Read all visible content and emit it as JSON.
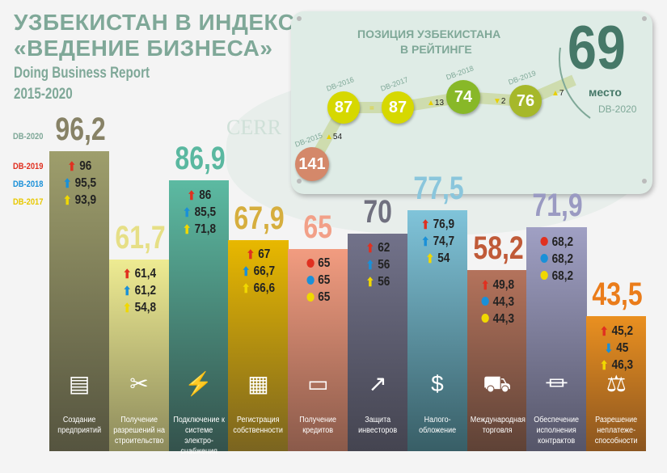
{
  "title": {
    "line1": "УЗБЕКИСТАН В ИНДЕКСЕ",
    "line2": "«ВЕДЕНИЕ БИЗНЕСА»",
    "sub1": "Doing Business Report",
    "sub2": "2015-2020"
  },
  "legend": [
    {
      "label": "DB-2020",
      "color": "#7fa898"
    },
    {
      "label": "DB-2019",
      "color": "#e03020"
    },
    {
      "label": "DB-2018",
      "color": "#1a90d8"
    },
    {
      "label": "DB-2017",
      "color": "#f0d800"
    }
  ],
  "watermark": "CERR",
  "ranking": {
    "title1": "ПОЗИЦИЯ УЗБЕКИСТАНА",
    "title2": "В РЕЙТИНГЕ",
    "current": "69",
    "current_label": "место",
    "current_year": "DB-2020",
    "points": [
      {
        "year": "DB-2015",
        "rank": "141",
        "color": "#d4886a"
      },
      {
        "year": "DB-2016",
        "rank": "87",
        "color": "#d6d800"
      },
      {
        "year": "DB-2017",
        "rank": "87",
        "color": "#d6d800"
      },
      {
        "year": "DB-2018",
        "rank": "74",
        "color": "#88b828"
      },
      {
        "year": "DB-2019",
        "rank": "76",
        "color": "#a6b82a"
      }
    ],
    "changes": [
      {
        "value": "54",
        "dir": "up"
      },
      {
        "value": "",
        "dir": "same"
      },
      {
        "value": "13",
        "dir": "up"
      },
      {
        "value": "2",
        "dir": "down"
      },
      {
        "value": "7",
        "dir": "up"
      }
    ]
  },
  "chart_data": {
    "type": "bar",
    "title": "",
    "ylim": [
      0,
      100
    ],
    "categories": [
      "Создание предприятий",
      "Получение разрешений на строительство",
      "Подключение к системе электро-снабжения",
      "Регистрация собственности",
      "Получение кредитов",
      "Защита инвесторов",
      "Налого-обложение",
      "Международная торговля",
      "Обеспечение исполнения контрактов",
      "Разрешение неплатеже-способности"
    ],
    "series": [
      {
        "name": "DB-2020",
        "values": [
          96.2,
          61.7,
          86.9,
          67.9,
          65,
          70,
          77.5,
          58.2,
          71.9,
          43.5
        ]
      },
      {
        "name": "DB-2019",
        "values": [
          96,
          61.4,
          86,
          67,
          65,
          62,
          76.9,
          49.8,
          68.2,
          45.2
        ]
      },
      {
        "name": "DB-2018",
        "values": [
          95.5,
          61.2,
          85.5,
          66.7,
          65,
          56,
          74.7,
          44.3,
          68.2,
          45
        ]
      },
      {
        "name": "DB-2017",
        "values": [
          93.9,
          54.8,
          71.8,
          66.6,
          65,
          56,
          54,
          44.3,
          68.2,
          46.3
        ]
      }
    ],
    "labels2020": [
      "96,2",
      "61,7",
      "86,9",
      "67,9",
      "65",
      "70",
      "77,5",
      "58,2",
      "71,9",
      "43,5"
    ],
    "rows": [
      [
        [
          "up",
          "96"
        ],
        [
          "up",
          "95,5"
        ],
        [
          "up",
          "93,9"
        ]
      ],
      [
        [
          "up",
          "61,4"
        ],
        [
          "up",
          "61,2"
        ],
        [
          "up",
          "54,8"
        ]
      ],
      [
        [
          "up",
          "86"
        ],
        [
          "up",
          "85,5"
        ],
        [
          "up",
          "71,8"
        ]
      ],
      [
        [
          "up",
          "67"
        ],
        [
          "up",
          "66,7"
        ],
        [
          "up",
          "66,6"
        ]
      ],
      [
        [
          "dot",
          "65"
        ],
        [
          "dot",
          "65"
        ],
        [
          "dot",
          "65"
        ]
      ],
      [
        [
          "up",
          "62"
        ],
        [
          "up",
          "56"
        ],
        [
          "up",
          "56"
        ]
      ],
      [
        [
          "up",
          "76,9"
        ],
        [
          "up",
          "74,7"
        ],
        [
          "up",
          "54"
        ]
      ],
      [
        [
          "up",
          "49,8"
        ],
        [
          "dot",
          "44,3"
        ],
        [
          "dot",
          "44,3"
        ]
      ],
      [
        [
          "dot",
          "68,2"
        ],
        [
          "dot",
          "68,2"
        ],
        [
          "dot",
          "68,2"
        ]
      ],
      [
        [
          "up",
          "45,2"
        ],
        [
          "down",
          "45"
        ],
        [
          "up",
          "46,3"
        ]
      ]
    ],
    "icons": [
      "business-form-icon",
      "tools-icon",
      "lightning-icon",
      "buildings-icon",
      "credit-card-icon",
      "growth-chart-icon",
      "money-icon",
      "truck-icon",
      "courthouse-icon",
      "gavel-icon"
    ],
    "bar_colors": [
      [
        "#9e9e6c",
        "#55543f"
      ],
      [
        "#eeeb92",
        "#8c8a5c"
      ],
      [
        "#5cbaa2",
        "#34524c"
      ],
      [
        "#e8b800",
        "#7a6420"
      ],
      [
        "#f29c80",
        "#8a5a4a"
      ],
      [
        "#72728a",
        "#444450"
      ],
      [
        "#80c4da",
        "#385e66"
      ],
      [
        "#b4735c",
        "#5e4236"
      ],
      [
        "#a0a0c4",
        "#555568"
      ],
      [
        "#ea9020",
        "#8a5520"
      ]
    ],
    "value_colors": [
      "#878266",
      "#e6df86",
      "#5ab8a0",
      "#d6ae3e",
      "#f2a088",
      "#70707f",
      "#8ac6dc",
      "#c05a38",
      "#9a9ac2",
      "#ea7c1a"
    ]
  }
}
